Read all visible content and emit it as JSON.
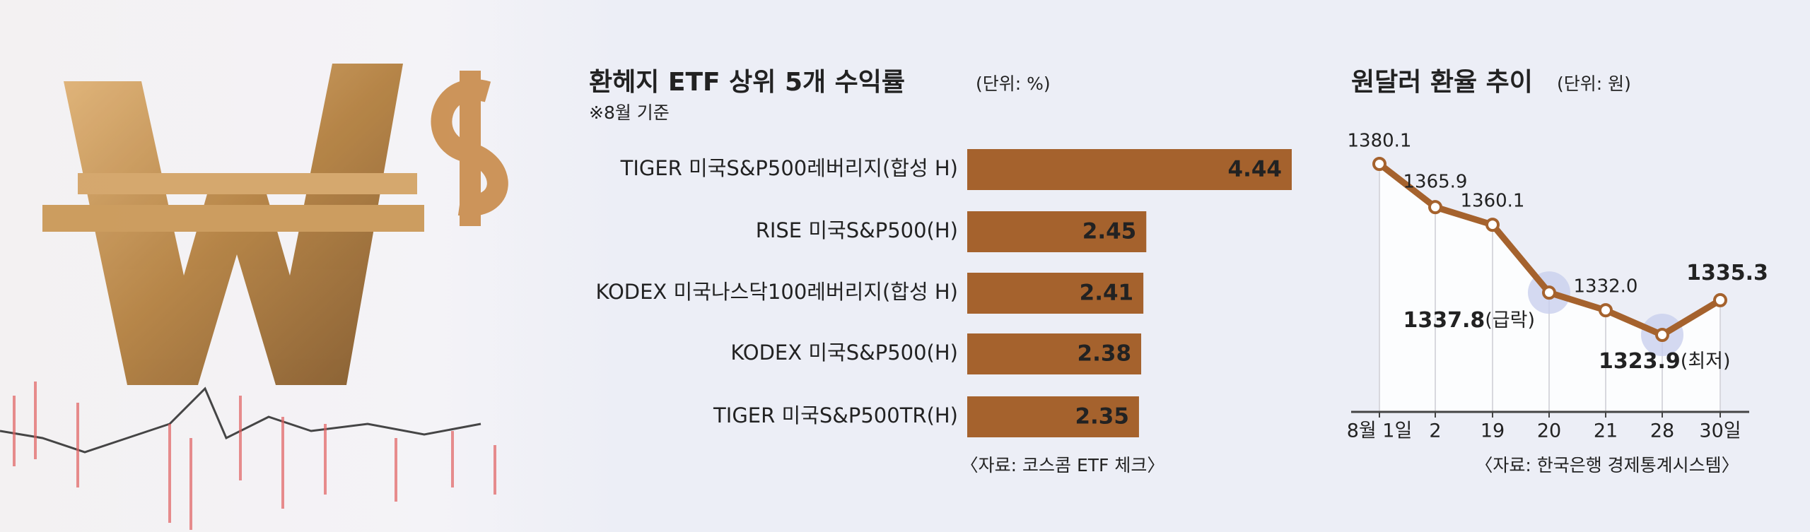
{
  "chart_data": [
    {
      "type": "bar",
      "orientation": "horizontal",
      "title": "환헤지 ETF 상위 5개 수익률",
      "unit": "(단위: %)",
      "note": "※8월 기준",
      "source": "〈자료: 코스콤 ETF 체크〉",
      "categories": [
        "TIGER 미국S&P500레버리지(합성 H)",
        "RISE 미국S&P500(H)",
        "KODEX 미국나스닥100레버리지(합성 H)",
        "KODEX 미국S&P500(H)",
        "TIGER 미국S&P500TR(H)"
      ],
      "values": [
        4.44,
        2.45,
        2.41,
        2.38,
        2.35
      ],
      "color": "#a5622d"
    },
    {
      "type": "line",
      "title": "원달러 환율 추이",
      "unit": "(단위: 원)",
      "source": "〈자료: 한국은행 경제통계시스템〉",
      "categories": [
        "8월 1일",
        "2",
        "19",
        "20",
        "21",
        "28",
        "30일"
      ],
      "values": [
        1380.1,
        1365.9,
        1360.1,
        1337.8,
        1332.0,
        1323.9,
        1335.3
      ],
      "value_labels": [
        "1380.1",
        "1365.9",
        "1360.1",
        "1337.8(급락)",
        "1332.0",
        "1323.9(최저)",
        "1335.3"
      ],
      "color": "#a5622d"
    }
  ]
}
